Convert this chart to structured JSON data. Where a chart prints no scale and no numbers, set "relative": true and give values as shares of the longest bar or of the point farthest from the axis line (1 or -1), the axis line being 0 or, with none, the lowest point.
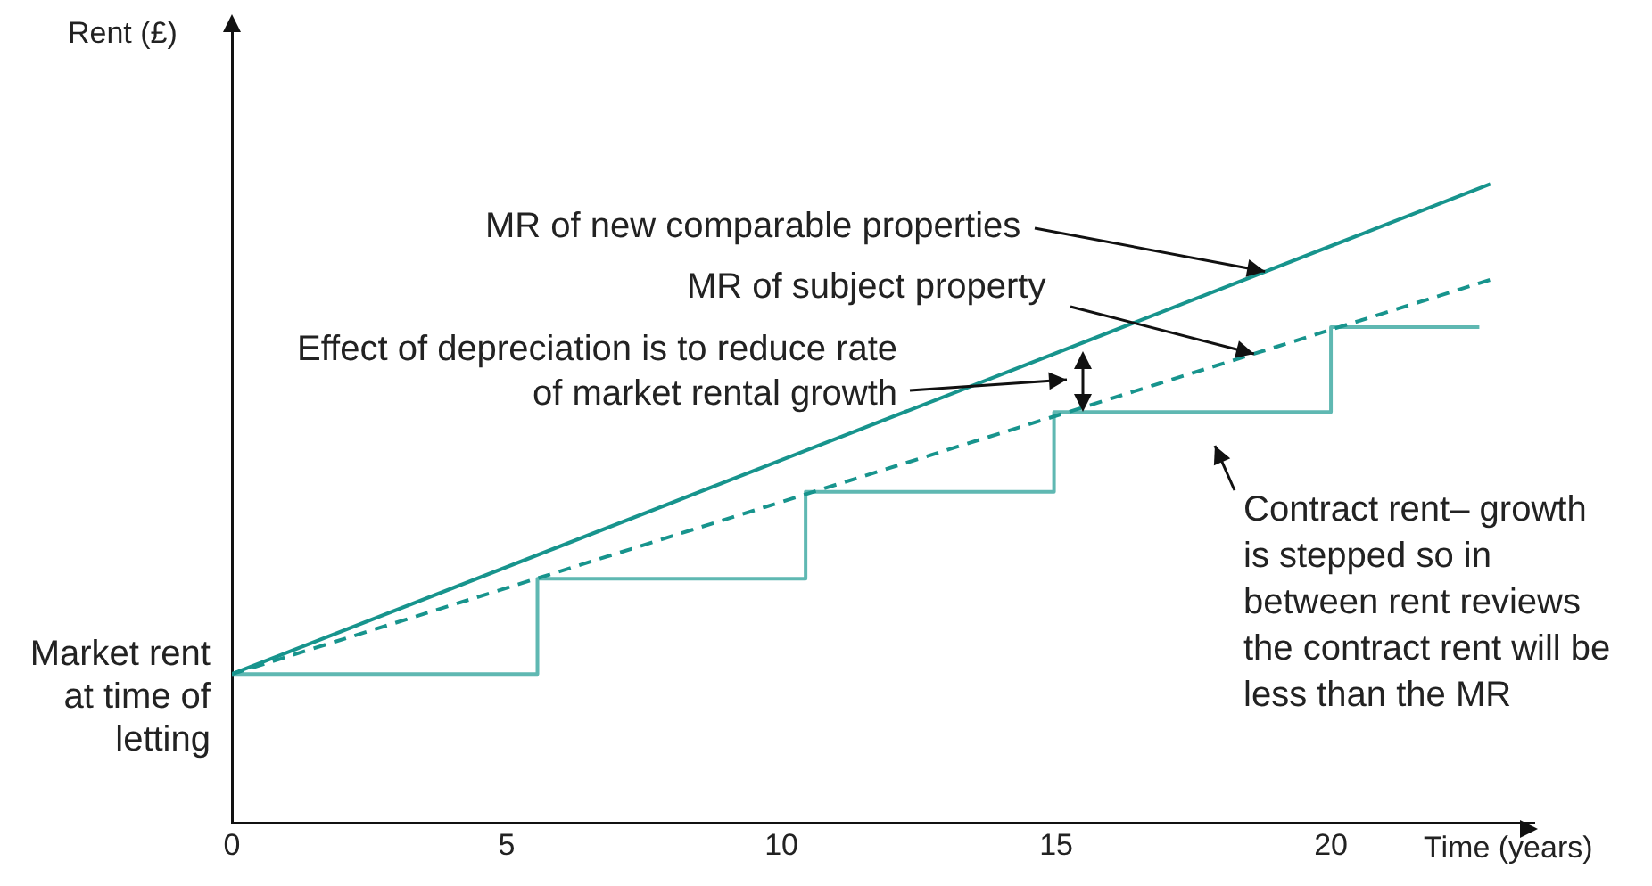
{
  "chart_data": {
    "type": "line",
    "relative": true,
    "xlabel": "Time (years)",
    "ylabel": "Rent (£)",
    "xlim": [
      0,
      23.7
    ],
    "xticks": [
      0,
      5,
      10,
      15,
      20
    ],
    "grid": false,
    "legend": false,
    "tick_labels": "x",
    "marker": "none",
    "series": [
      {
        "color": "#17948d",
        "line_style": "solid",
        "x": [
          0,
          22.9
        ],
        "values": [
          0.233,
          1
        ]
      },
      {
        "color": "#17948d",
        "line_style": "dashed",
        "x": [
          0,
          22.9
        ],
        "values": [
          0.233,
          0.85
        ]
      },
      {
        "type": "step",
        "color": "#5fb8b2",
        "line_style": "solid",
        "x": [
          0,
          5.56,
          10.44,
          14.96,
          20,
          22.7
        ],
        "values": [
          0.233,
          0.382,
          0.518,
          0.643,
          0.776,
          0.776
        ]
      }
    ],
    "annotations": [
      {
        "text": "MR of new comparable properties",
        "x": 18.8,
        "y": 0.863
      },
      {
        "text": "MR of subject property",
        "x": 18.6,
        "y": 0.734
      },
      "Effect of depreciation is to reduce rate of market rental growth",
      "Contract rent– growth is stepped so in between rent reviews the contract rent will be less than the MR",
      "Market rent at time of letting"
    ]
  }
}
